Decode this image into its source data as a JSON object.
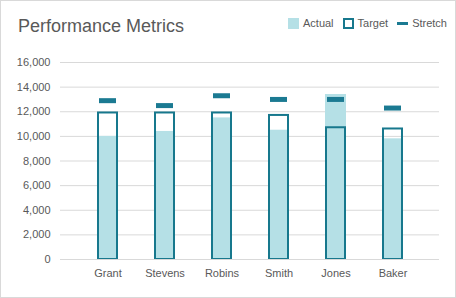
{
  "chart_data": {
    "type": "bar",
    "title": "Performance Metrics",
    "categories": [
      "Grant",
      "Stevens",
      "Robins",
      "Smith",
      "Jones",
      "Baker"
    ],
    "series": [
      {
        "name": "Actual",
        "type": "bar",
        "color": "#b5e0e6",
        "values": [
          10000,
          10400,
          11500,
          10500,
          13400,
          9800
        ]
      },
      {
        "name": "Target",
        "type": "bar",
        "marker": "outline",
        "color": "#17788d",
        "values": [
          11900,
          11900,
          11900,
          11700,
          10700,
          10600
        ]
      },
      {
        "name": "Stretch",
        "type": "scatter",
        "marker": "dash",
        "color": "#1b7a92",
        "values": [
          12900,
          12500,
          13300,
          13000,
          13000,
          12300
        ]
      }
    ],
    "ylim": [
      0,
      16000
    ],
    "yticks": [
      0,
      {
        "value": 2000,
        "label": "2,000"
      },
      {
        "value": 4000,
        "label": "4,000"
      },
      {
        "value": 6000,
        "label": "6,000"
      },
      {
        "value": 8000,
        "label": "8,000"
      },
      {
        "value": 10000,
        "label": "10,000"
      },
      {
        "value": 12000,
        "label": "12,000"
      },
      {
        "value": 14000,
        "label": "14,000"
      },
      {
        "value": 16000,
        "label": "16,000"
      }
    ],
    "grid": true,
    "legend": "top-right"
  }
}
